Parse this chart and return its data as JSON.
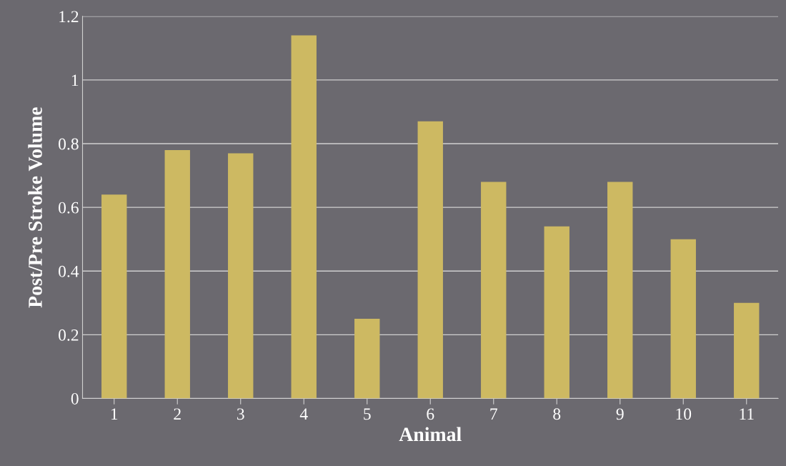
{
  "chart_data": {
    "type": "bar",
    "xlabel": "Animal",
    "ylabel": "Post/Pre Stroke Volume",
    "categories": [
      "1",
      "2",
      "3",
      "4",
      "5",
      "6",
      "7",
      "8",
      "9",
      "10",
      "11"
    ],
    "values": [
      0.64,
      0.78,
      0.77,
      1.14,
      0.25,
      0.87,
      0.68,
      0.54,
      0.68,
      0.5,
      0.3
    ],
    "color": "#cdb962",
    "ylim": [
      0,
      1.2
    ],
    "yticks": [
      0,
      0.2,
      0.4,
      0.6,
      0.8,
      1,
      1.2
    ],
    "grid": "y",
    "legend": false
  }
}
